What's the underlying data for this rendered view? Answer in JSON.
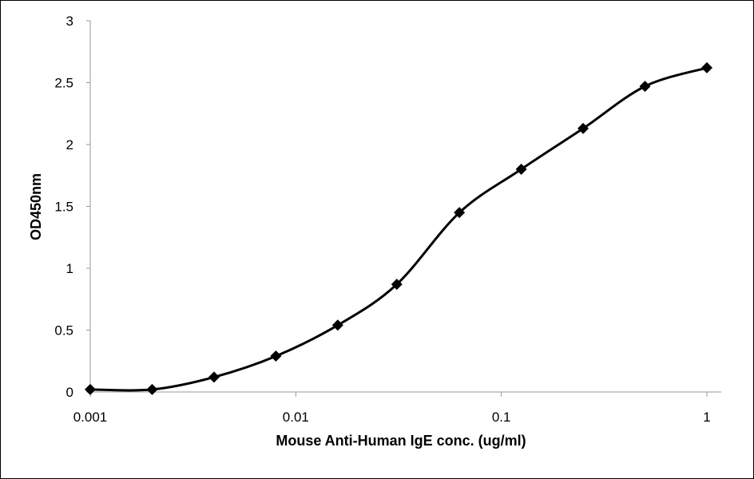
{
  "chart_data": {
    "type": "line",
    "title": "",
    "xlabel": "Mouse Anti-Human IgE  conc. (ug/ml)",
    "ylabel": "OD450nm",
    "x_scale": "log",
    "xlim": [
      0.001,
      1
    ],
    "ylim": [
      0,
      3
    ],
    "x_ticks": [
      "0.001",
      "0.01",
      "0.1",
      "1"
    ],
    "y_ticks": [
      "0",
      "0.5",
      "1",
      "1.5",
      "2",
      "2.5",
      "3"
    ],
    "grid": false,
    "legend": "none",
    "line_color": "#000000",
    "marker": "diamond",
    "smooth": true,
    "series": [
      {
        "x": [
          0.001,
          0.002,
          0.004,
          0.008,
          0.016,
          0.031,
          0.0625,
          0.125,
          0.25,
          0.5,
          1
        ],
        "y": [
          0.02,
          0.02,
          0.12,
          0.29,
          0.54,
          0.87,
          1.45,
          1.8,
          2.13,
          2.47,
          2.62
        ]
      }
    ]
  }
}
